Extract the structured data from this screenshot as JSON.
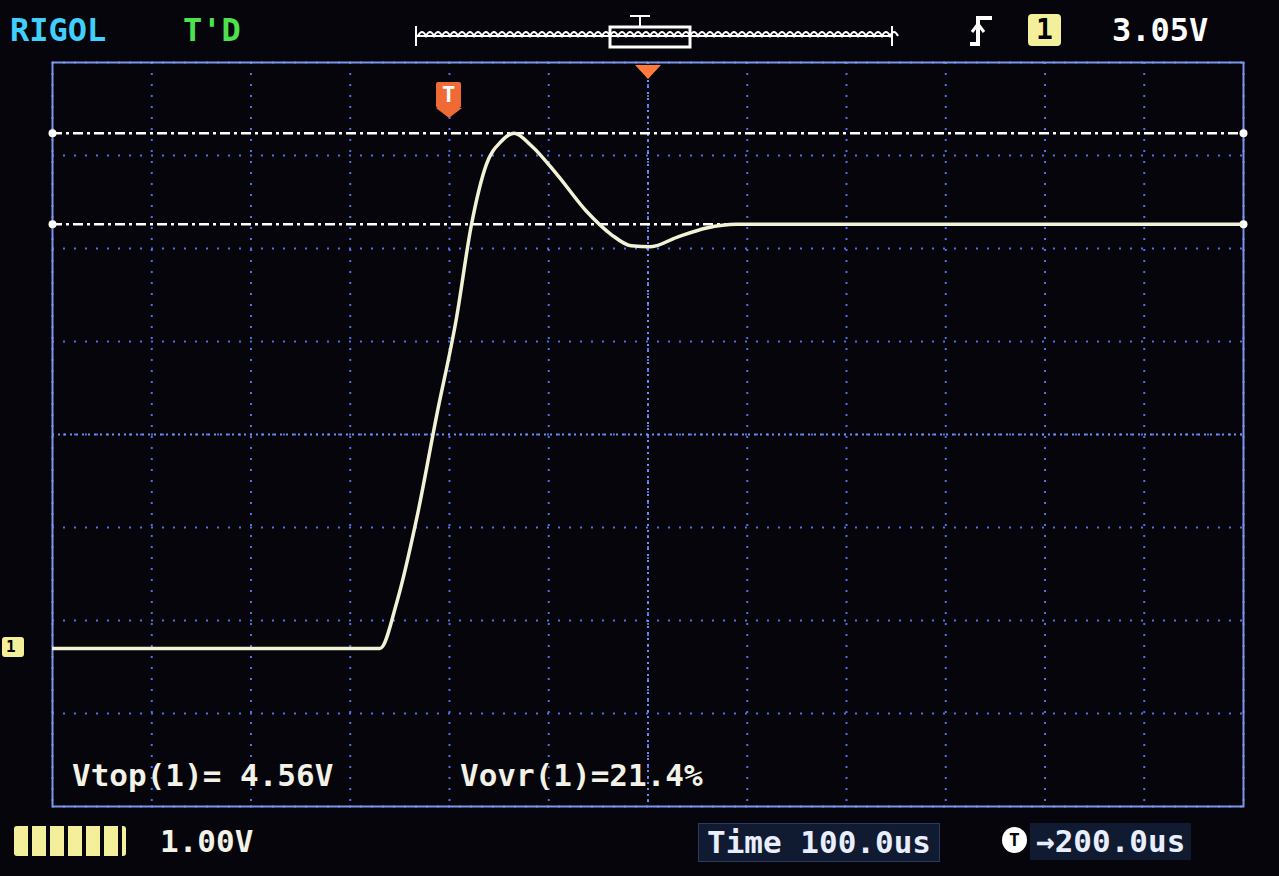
{
  "chart_data": {
    "type": "line",
    "x": [
      -400,
      -300,
      -200,
      -100,
      -70,
      -53,
      -33,
      -13,
      7,
      22,
      37,
      52,
      65,
      83,
      108,
      138,
      163,
      183,
      203,
      229,
      259,
      289,
      350,
      450,
      550,
      650,
      800
    ],
    "values": [
      0,
      0,
      0,
      0,
      0,
      0.5,
      1.4,
      2.5,
      3.55,
      4.55,
      5.2,
      5.45,
      5.54,
      5.4,
      5.1,
      4.7,
      4.45,
      4.33,
      4.32,
      4.42,
      4.52,
      4.56,
      4.56,
      4.56,
      4.56,
      4.56,
      4.56
    ],
    "color": "#f2f2d6",
    "xlim": [
      -400,
      800
    ],
    "xticks": [
      -400,
      -300,
      -200,
      -100,
      0,
      100,
      200,
      300,
      400,
      500,
      600,
      700,
      800
    ],
    "ylim": [
      -1.7,
      6.3
    ],
    "yticks": [
      -1.7,
      -0.7,
      0.3,
      1.3,
      2.3,
      3.3,
      4.3,
      5.3,
      6.3
    ],
    "grid": true,
    "tick_labels": false,
    "reference_lines": [
      5.54,
      4.56
    ],
    "trigger_time": 0,
    "ground_level": 0,
    "annotations": {
      "brand": "RIGOL",
      "status": "T'D",
      "trigger_level": "3.05V",
      "channel": "1",
      "trigger_marker": "T",
      "measurements": [
        "Vtop(1)= 4.56V",
        "Vovr(1)=21.4%"
      ],
      "volts_per_div": "1.00V",
      "time_base": "Time 100.0us",
      "trigger_offset_icon": "T",
      "trigger_offset": "→200.0us"
    }
  }
}
